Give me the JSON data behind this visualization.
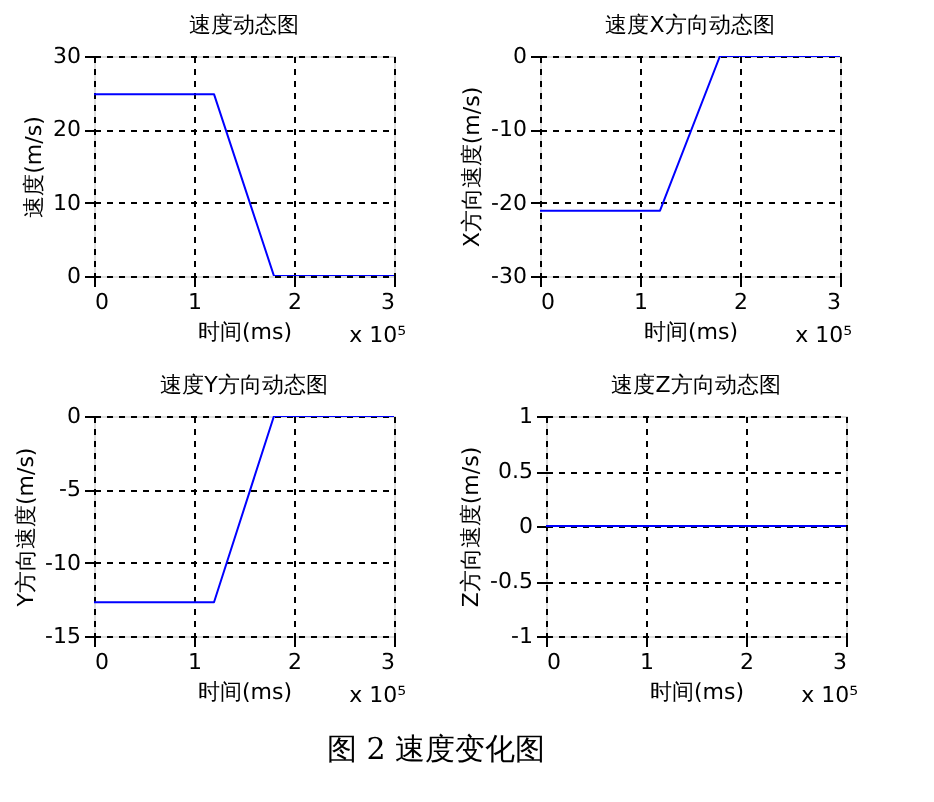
{
  "chart_data": [
    {
      "type": "line",
      "title": "速度动态图",
      "xlabel": "时间(ms)",
      "ylabel": "速度(m/s)",
      "x": [
        0,
        1.2,
        1.8,
        3
      ],
      "series": [
        {
          "color": "#0000ff",
          "values": [
            24.8,
            24.8,
            0,
            0
          ]
        }
      ],
      "xlim": [
        0,
        3
      ],
      "xticks": [
        0,
        1,
        2,
        3
      ],
      "ylim": [
        0,
        30
      ],
      "yticks": [
        0,
        10,
        20,
        30
      ],
      "grid": true,
      "annotations": [
        "x 10⁵"
      ]
    },
    {
      "type": "line",
      "title": "速度X方向动态图",
      "xlabel": "时间(ms)",
      "ylabel": "X方向速度(m/s)",
      "x": [
        0,
        1.2,
        1.8,
        3
      ],
      "series": [
        {
          "color": "#0000ff",
          "values": [
            -21.1,
            -21.1,
            0,
            0
          ]
        }
      ],
      "xlim": [
        0,
        3
      ],
      "xticks": [
        0,
        1,
        2,
        3
      ],
      "ylim": [
        -30,
        0
      ],
      "yticks": [
        -30,
        -20,
        -10,
        0
      ],
      "grid": true,
      "annotations": [
        "x 10⁵"
      ]
    },
    {
      "type": "line",
      "title": "速度Y方向动态图",
      "xlabel": "时间(ms)",
      "ylabel": "Y方向速度(m/s)",
      "x": [
        0,
        1.2,
        1.8,
        3
      ],
      "series": [
        {
          "color": "#0000ff",
          "values": [
            -12.7,
            -12.7,
            0,
            0
          ]
        }
      ],
      "xlim": [
        0,
        3
      ],
      "xticks": [
        0,
        1,
        2,
        3
      ],
      "ylim": [
        -15,
        0
      ],
      "yticks": [
        -15,
        -10,
        -5,
        0
      ],
      "grid": true,
      "annotations": [
        "x 10⁵"
      ]
    },
    {
      "type": "line",
      "title": "速度Z方向动态图",
      "xlabel": "时间(ms)",
      "ylabel": "Z方向速度(m/s)",
      "x": [
        0,
        3
      ],
      "series": [
        {
          "color": "#0000ff",
          "values": [
            0,
            0
          ]
        }
      ],
      "xlim": [
        0,
        3
      ],
      "xticks": [
        0,
        1,
        2,
        3
      ],
      "ylim": [
        -1,
        1
      ],
      "yticks": [
        -1,
        -0.5,
        0,
        0.5,
        1
      ],
      "grid": true,
      "annotations": [
        "x 10⁵",
        "图 2 速度变化图"
      ]
    }
  ]
}
